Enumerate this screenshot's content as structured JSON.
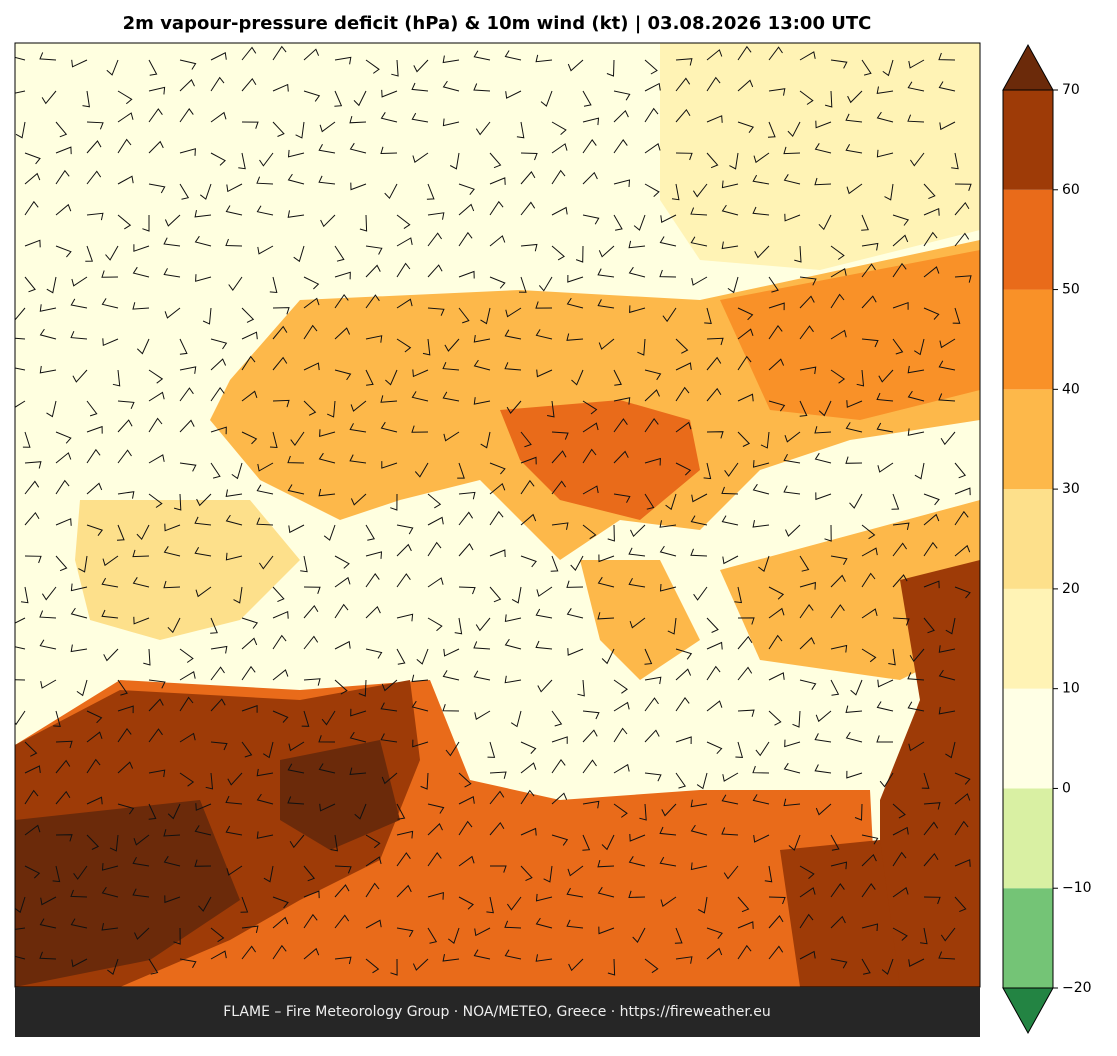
{
  "title": "2m vapour-pressure deficit (hPa) & 10m wind (kt)  |  03.08.2026 13:00 UTC",
  "footer": "FLAME – Fire Meteorology Group · NOA/METEO, Greece · https://fireweather.eu",
  "colorbar": {
    "bounds": [
      -20,
      -10,
      0,
      10,
      20,
      30,
      40,
      50,
      60,
      70
    ],
    "colors": [
      "#74c476",
      "#d9f0a3",
      "#ffffe5",
      "#fff3b5",
      "#fde08b",
      "#fdb84a",
      "#f99128",
      "#e96b1a",
      "#9e3b07"
    ],
    "extend_low_color": "#238443",
    "extend_high_color": "#6b2a0a",
    "ticks": [
      {
        "value": -20,
        "label": "−20"
      },
      {
        "value": -10,
        "label": "−10"
      },
      0,
      10,
      20,
      30,
      40,
      50,
      60,
      70
    ]
  }
}
